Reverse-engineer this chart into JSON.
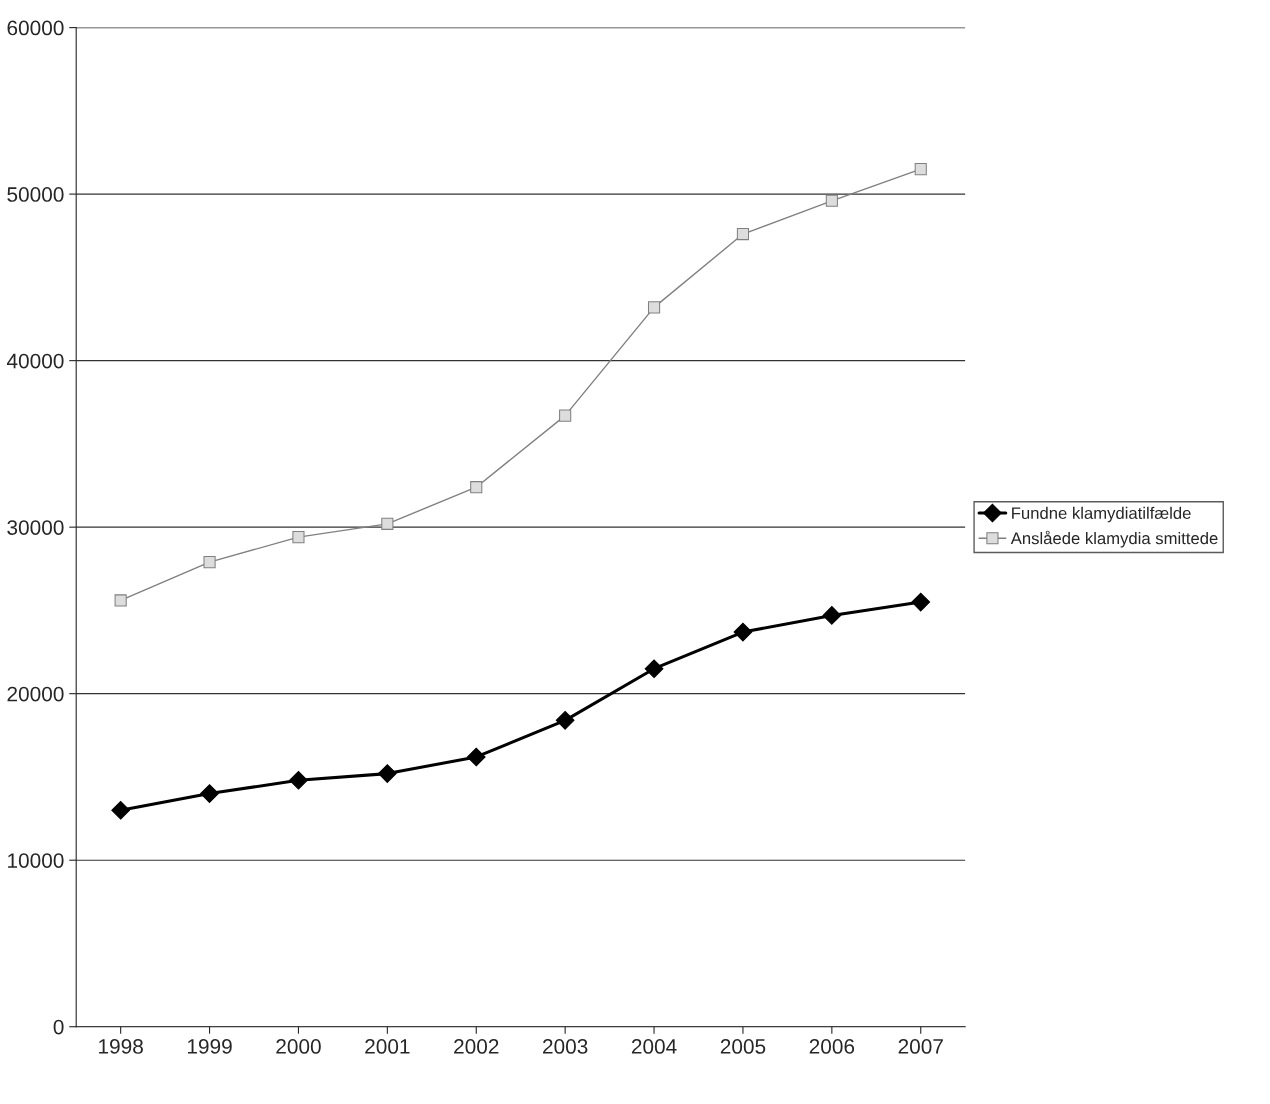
{
  "chart_data": {
    "type": "line",
    "categories": [
      "1998",
      "1999",
      "2000",
      "2001",
      "2002",
      "2003",
      "2004",
      "2005",
      "2006",
      "2007"
    ],
    "series": [
      {
        "name": "Fundne klamydiatilfælde",
        "color": "#000000",
        "marker": "diamond",
        "values": [
          13000,
          14000,
          14800,
          15200,
          16200,
          18400,
          21500,
          23700,
          24700,
          25500
        ]
      },
      {
        "name": "Anslåede klamydia smittede",
        "color": "#808080",
        "marker": "square",
        "values": [
          25600,
          27900,
          29400,
          30200,
          32400,
          36700,
          43200,
          47600,
          49600,
          51500
        ]
      }
    ],
    "ylim": [
      0,
      60000
    ],
    "yticks": [
      0,
      10000,
      20000,
      30000,
      40000,
      50000,
      60000
    ],
    "grid": "y",
    "legend": "right"
  }
}
